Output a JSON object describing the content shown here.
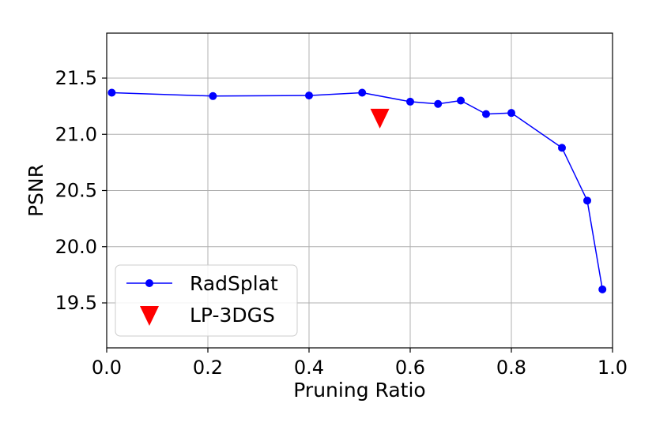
{
  "chart_data": {
    "type": "line",
    "xlabel": "Pruning Ratio",
    "ylabel": "PSNR",
    "xlim": [
      0.0,
      1.0
    ],
    "ylim": [
      19.1,
      21.9
    ],
    "xticks": [
      "0.0",
      "0.2",
      "0.4",
      "0.6",
      "0.8",
      "1.0"
    ],
    "yticks": [
      "19.5",
      "20.0",
      "20.5",
      "21.0",
      "21.5"
    ],
    "grid": true,
    "legend_position": "lower-left",
    "series": [
      {
        "name": "RadSplat",
        "type": "line",
        "marker": "circle",
        "color": "#0000ff",
        "x": [
          0.01,
          0.21,
          0.4,
          0.505,
          0.6,
          0.655,
          0.7,
          0.75,
          0.8,
          0.9,
          0.95,
          0.98
        ],
        "y": [
          21.37,
          21.34,
          21.345,
          21.37,
          21.29,
          21.27,
          21.3,
          21.18,
          21.19,
          20.88,
          20.41,
          19.62
        ]
      },
      {
        "name": "LP-3DGS",
        "type": "scatter",
        "marker": "triangle-down",
        "color": "#ff0000",
        "x": [
          0.54
        ],
        "y": [
          21.15
        ]
      }
    ]
  }
}
